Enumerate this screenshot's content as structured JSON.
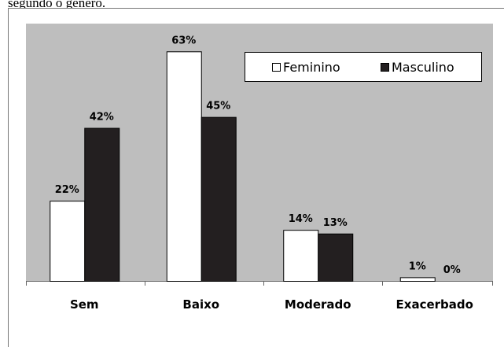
{
  "caption": "segundo o gênero.",
  "chart_data": {
    "type": "bar",
    "categories": [
      "Sem",
      "Baixo",
      "Moderado",
      "Exacerbado"
    ],
    "series": [
      {
        "name": "Feminino",
        "color": "#ffffff",
        "values": [
          22,
          63,
          14,
          1
        ],
        "value_labels": [
          "22%",
          "63%",
          "14%",
          "1%"
        ]
      },
      {
        "name": "Masculino",
        "color": "#231f20",
        "values": [
          42,
          45,
          13,
          0
        ],
        "value_labels": [
          "42%",
          "45%",
          "13%",
          "0%"
        ]
      }
    ],
    "legend": "top-right"
  }
}
